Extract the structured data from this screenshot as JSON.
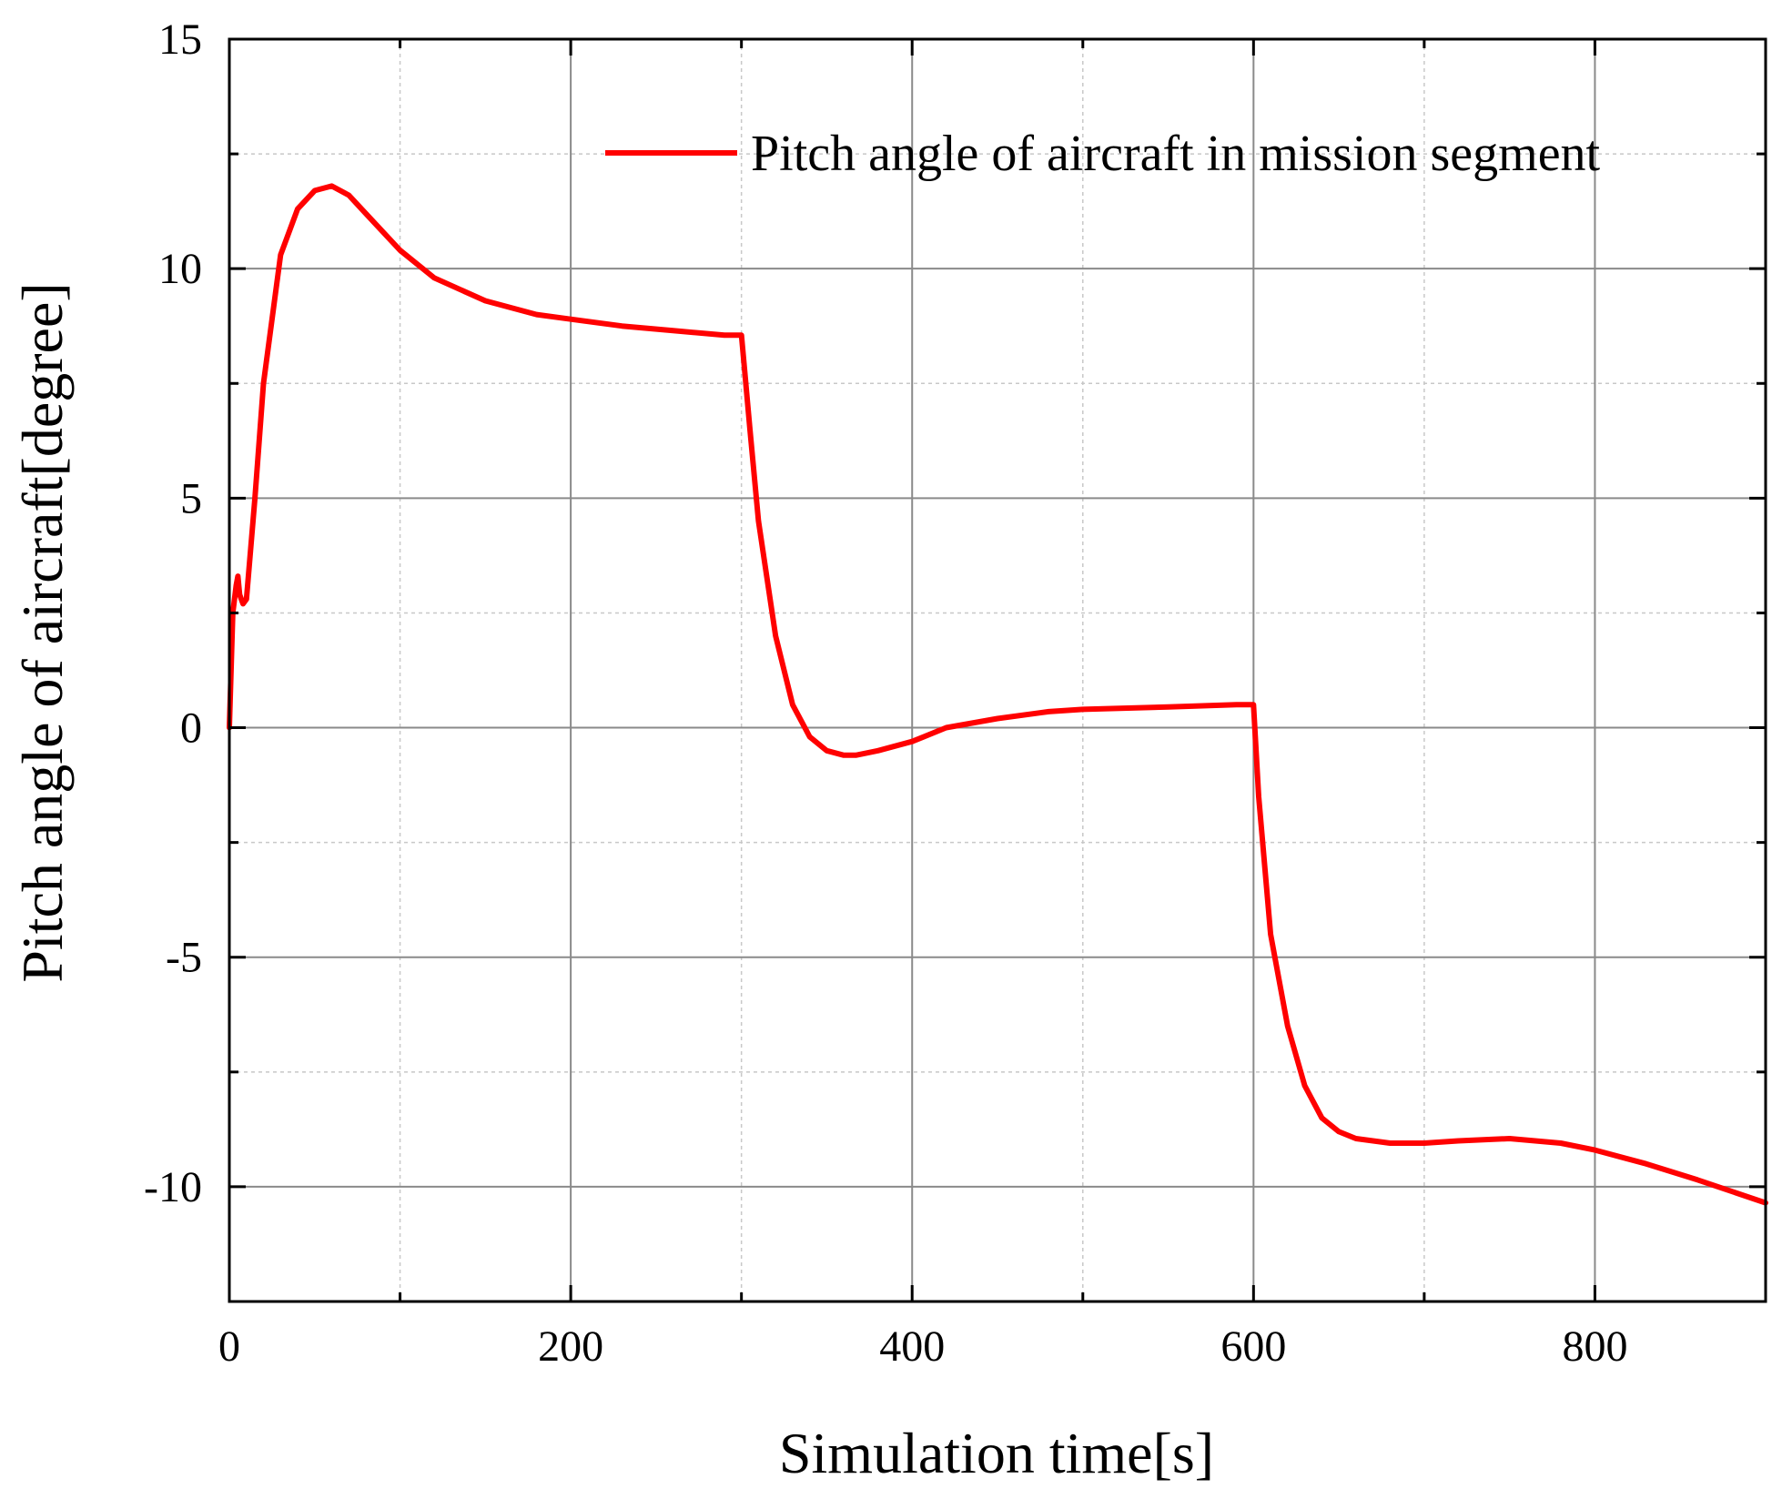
{
  "chart_data": {
    "type": "line",
    "xlabel": "Simulation time[s]",
    "ylabel": "Pitch angle of aircraft[degree]",
    "xlim": [
      0,
      900
    ],
    "ylim": [
      -12.5,
      15
    ],
    "xticks": [
      0,
      200,
      400,
      600,
      800
    ],
    "yticks": [
      15,
      10,
      5,
      0,
      -5,
      -10
    ],
    "xtick_labels": [
      "0",
      "200",
      "400",
      "600",
      "800"
    ],
    "ytick_labels": [
      "15",
      "10",
      "5",
      "0",
      "-5",
      "-10"
    ],
    "minor_x": [
      100,
      300,
      500,
      700
    ],
    "minor_y": [
      12.5,
      7.5,
      2.5,
      -2.5,
      -7.5
    ],
    "grid": true,
    "legend_position": "top-right",
    "series": [
      {
        "name": "Pitch angle of aircraft in mission segment",
        "color": "#ff0000",
        "x": [
          0,
          2,
          4,
          5,
          6,
          8,
          10,
          15,
          20,
          30,
          40,
          50,
          60,
          70,
          80,
          100,
          120,
          150,
          180,
          200,
          230,
          260,
          290,
          300,
          305,
          310,
          320,
          330,
          340,
          350,
          360,
          367,
          380,
          400,
          420,
          450,
          480,
          500,
          550,
          590,
          600,
          603,
          610,
          620,
          630,
          640,
          650,
          660,
          670,
          680,
          690,
          700,
          720,
          750,
          780,
          800,
          830,
          860,
          900
        ],
        "y": [
          0,
          2.5,
          3.1,
          3.3,
          2.9,
          2.7,
          2.8,
          5.0,
          7.5,
          10.3,
          11.3,
          11.7,
          11.8,
          11.6,
          11.2,
          10.4,
          9.8,
          9.3,
          9.0,
          8.9,
          8.75,
          8.65,
          8.55,
          8.55,
          6.5,
          4.5,
          2.0,
          0.5,
          -0.2,
          -0.5,
          -0.6,
          -0.6,
          -0.5,
          -0.3,
          0.0,
          0.2,
          0.35,
          0.4,
          0.45,
          0.5,
          0.5,
          -1.5,
          -4.5,
          -6.5,
          -7.8,
          -8.5,
          -8.8,
          -8.95,
          -9.0,
          -9.05,
          -9.05,
          -9.05,
          -9.0,
          -8.95,
          -9.05,
          -9.2,
          -9.5,
          -9.85,
          -10.35
        ]
      }
    ]
  }
}
